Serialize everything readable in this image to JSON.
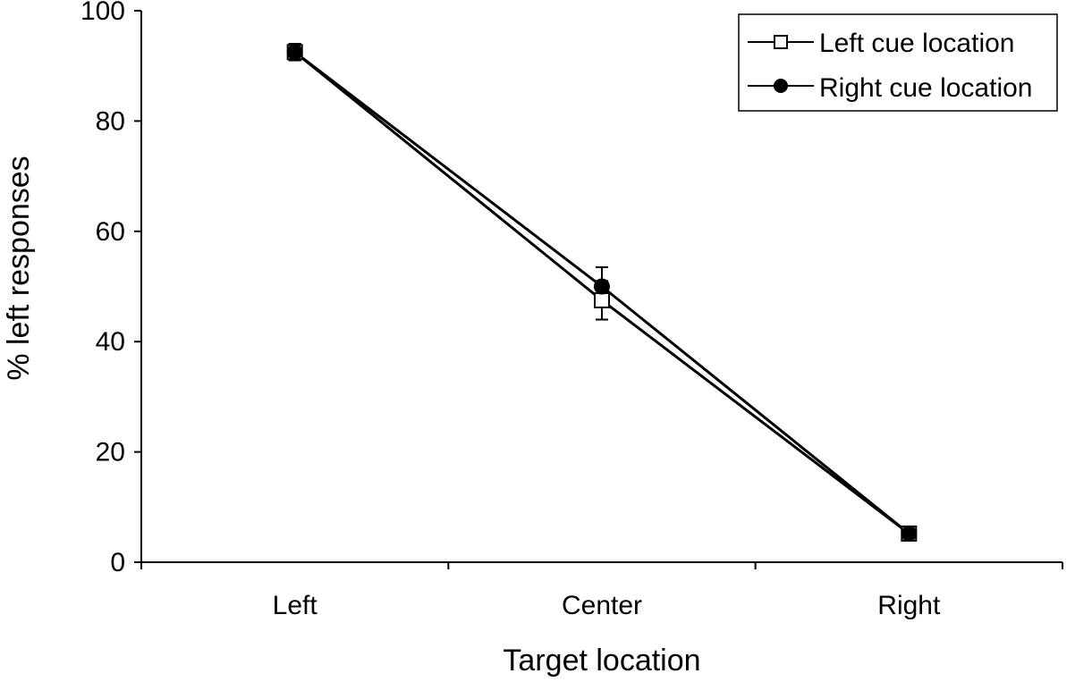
{
  "chart_data": {
    "type": "line",
    "categories": [
      "Left",
      "Center",
      "Right"
    ],
    "series": [
      {
        "name": "Left cue location",
        "marker": "open-square",
        "values": [
          92.5,
          47.5,
          5.2
        ],
        "errors": [
          1.5,
          3.5,
          1.0
        ]
      },
      {
        "name": "Right cue location",
        "marker": "filled-circle",
        "values": [
          92.5,
          50.0,
          5.2
        ],
        "errors": [
          1.5,
          3.5,
          1.0
        ]
      }
    ],
    "xlabel": "Target location",
    "ylabel": "% left responses",
    "ylim": [
      0,
      100
    ],
    "yticks": [
      "0",
      "20",
      "40",
      "60",
      "80",
      "100"
    ],
    "legend_position": "top-right",
    "grid": false,
    "colors": {
      "line": "#000000",
      "background": "#ffffff"
    }
  }
}
